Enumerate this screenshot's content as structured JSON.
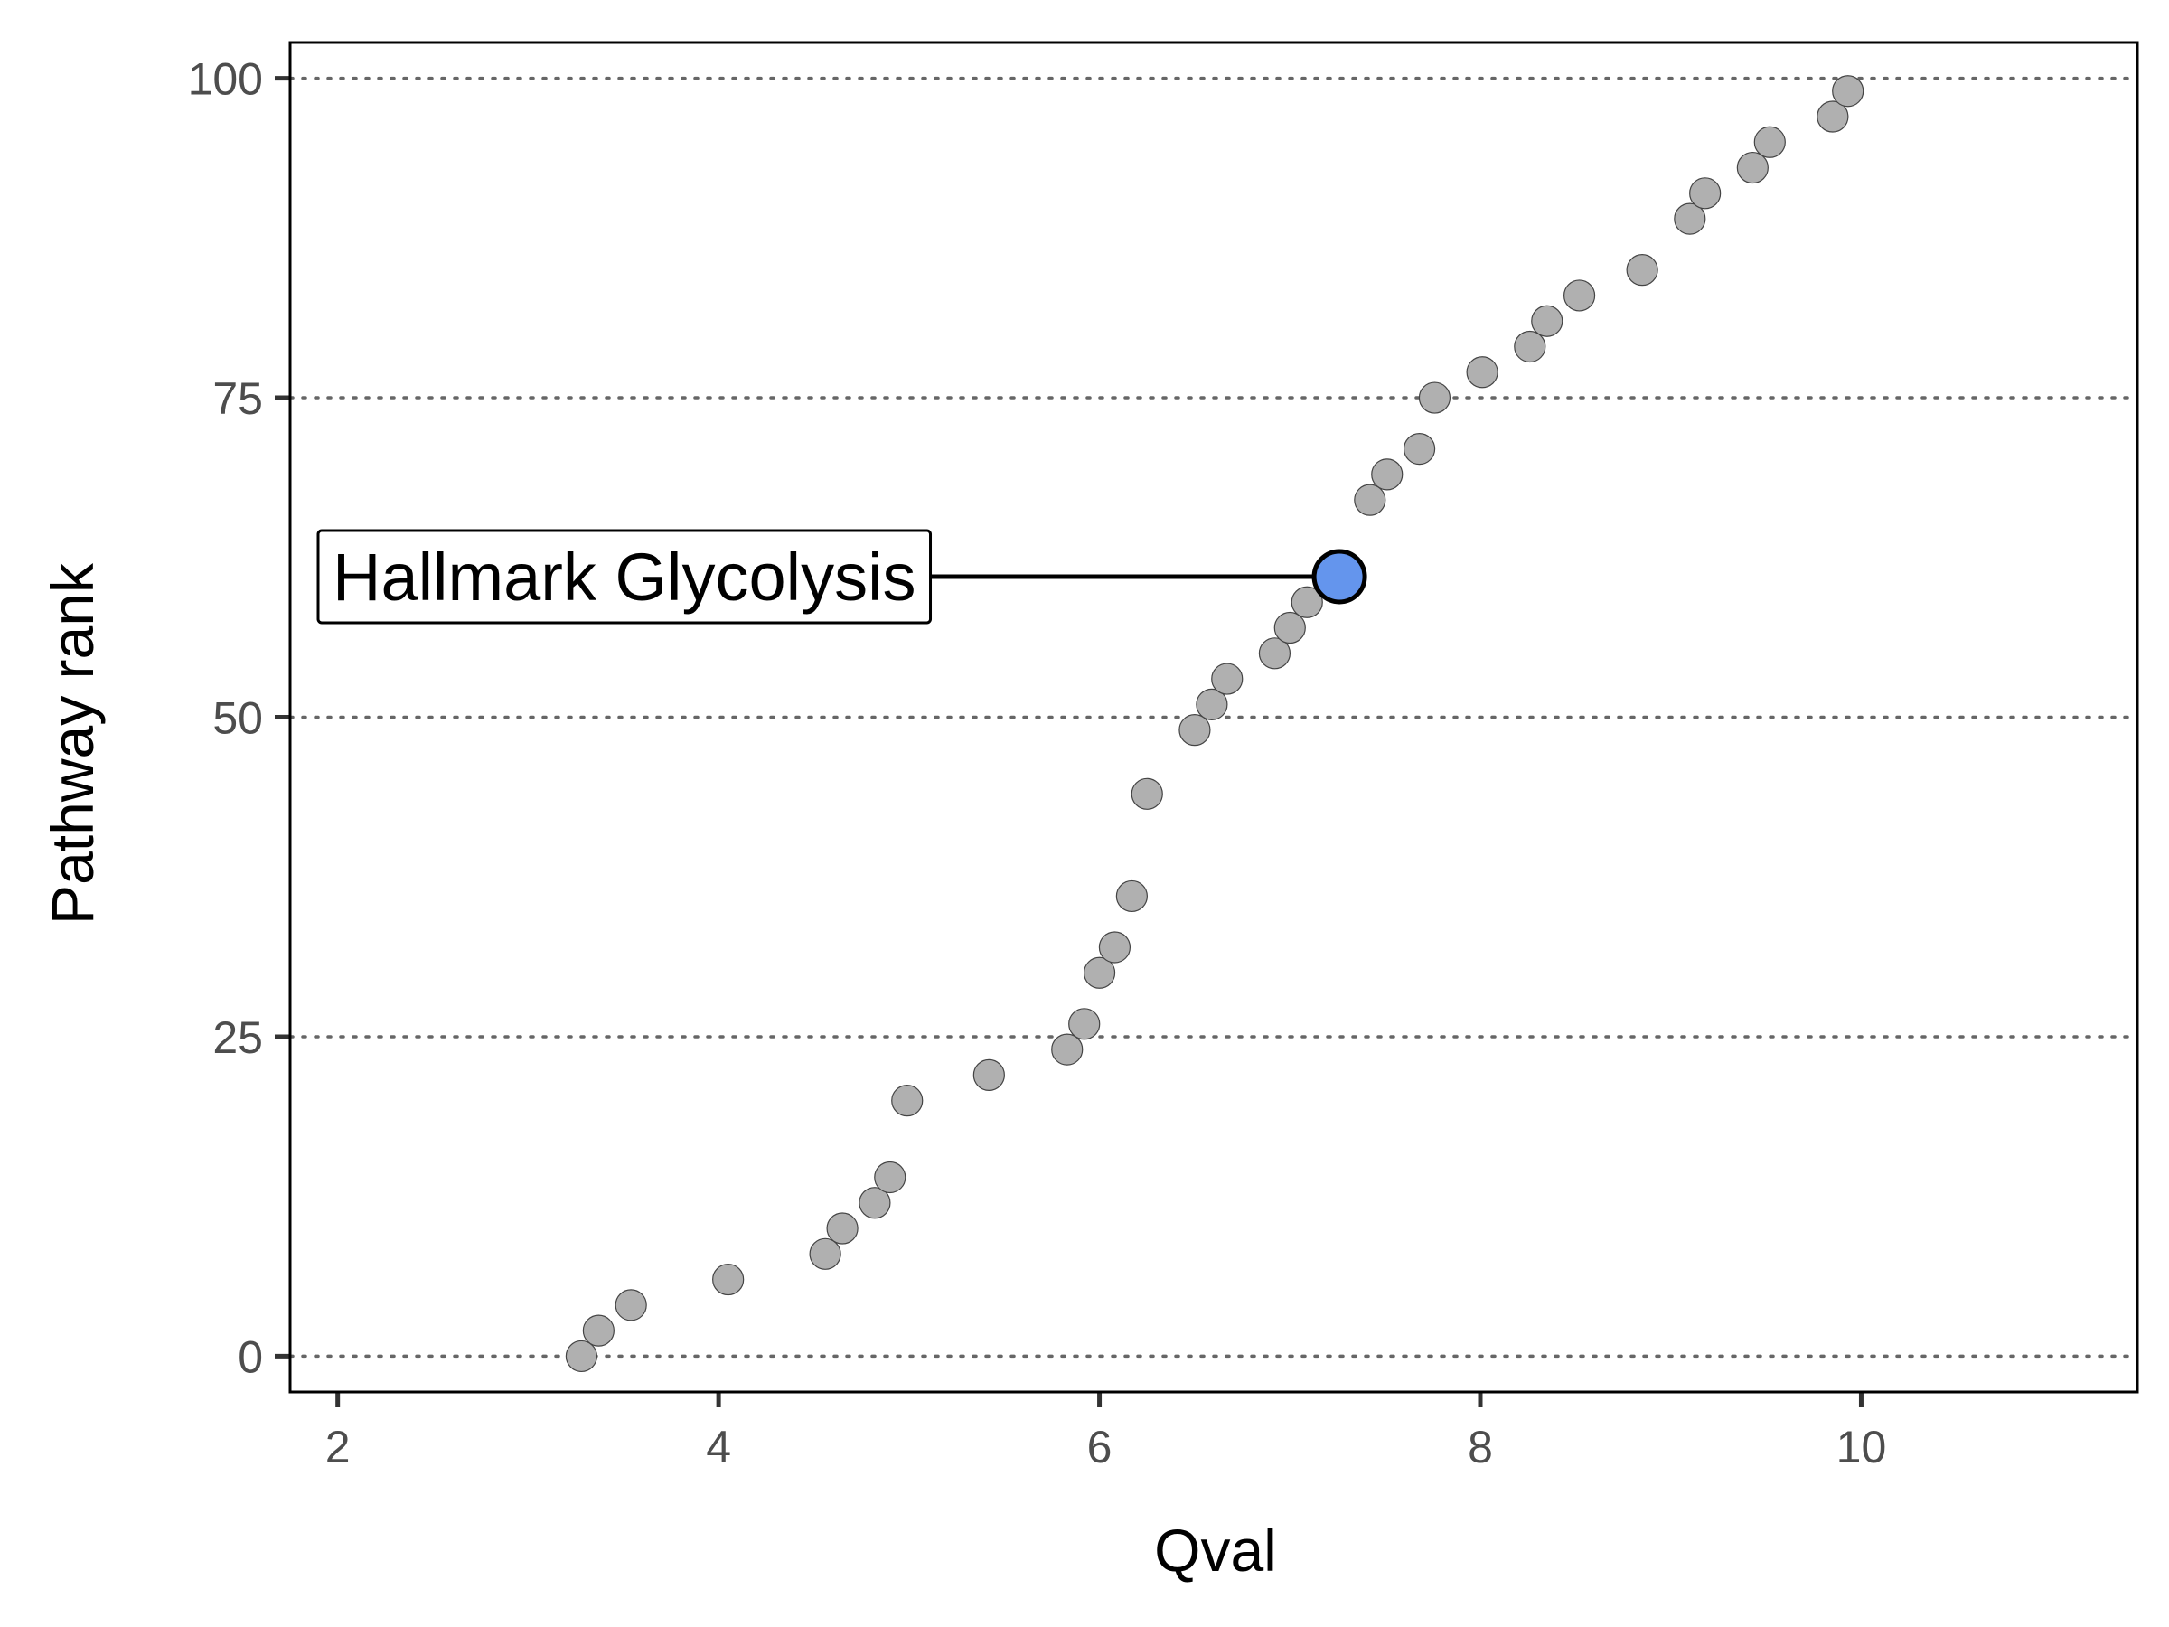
{
  "chart_data": {
    "type": "scatter",
    "title": "",
    "xlabel": "Qval",
    "ylabel": "Pathway rank",
    "xlim": [
      1.75,
      11.45
    ],
    "ylim": [
      -2.8,
      102.8
    ],
    "xticks": [
      2,
      4,
      6,
      8,
      10
    ],
    "yticks": [
      0,
      25,
      50,
      75,
      100
    ],
    "grid": "horizontal dotted",
    "legend": "none",
    "colors": {
      "point": "#b0b0b0",
      "point_stroke": "#444444",
      "highlight": "#6495ed",
      "grid": "#666666"
    },
    "points": [
      {
        "x": 3.28,
        "y": 0
      },
      {
        "x": 3.37,
        "y": 2
      },
      {
        "x": 3.54,
        "y": 4
      },
      {
        "x": 4.05,
        "y": 6
      },
      {
        "x": 4.56,
        "y": 8
      },
      {
        "x": 4.65,
        "y": 10
      },
      {
        "x": 4.82,
        "y": 12
      },
      {
        "x": 4.9,
        "y": 14
      },
      {
        "x": 4.99,
        "y": 20
      },
      {
        "x": 5.42,
        "y": 22
      },
      {
        "x": 5.83,
        "y": 24
      },
      {
        "x": 5.92,
        "y": 26
      },
      {
        "x": 6.0,
        "y": 30
      },
      {
        "x": 6.08,
        "y": 32
      },
      {
        "x": 6.17,
        "y": 36
      },
      {
        "x": 6.25,
        "y": 44
      },
      {
        "x": 6.5,
        "y": 49
      },
      {
        "x": 6.59,
        "y": 51
      },
      {
        "x": 6.67,
        "y": 53
      },
      {
        "x": 6.92,
        "y": 55
      },
      {
        "x": 7.0,
        "y": 57
      },
      {
        "x": 7.09,
        "y": 59
      },
      {
        "x": 7.42,
        "y": 67
      },
      {
        "x": 7.51,
        "y": 69
      },
      {
        "x": 7.68,
        "y": 71
      },
      {
        "x": 7.76,
        "y": 75
      },
      {
        "x": 8.01,
        "y": 77
      },
      {
        "x": 8.26,
        "y": 79
      },
      {
        "x": 8.35,
        "y": 81
      },
      {
        "x": 8.52,
        "y": 83
      },
      {
        "x": 8.85,
        "y": 85
      },
      {
        "x": 9.1,
        "y": 89
      },
      {
        "x": 9.18,
        "y": 91
      },
      {
        "x": 9.43,
        "y": 93
      },
      {
        "x": 9.52,
        "y": 95
      },
      {
        "x": 9.85,
        "y": 97
      },
      {
        "x": 9.93,
        "y": 99
      }
    ],
    "highlight": {
      "x": 7.26,
      "y": 61,
      "label": "Hallmark Glycolysis"
    }
  }
}
